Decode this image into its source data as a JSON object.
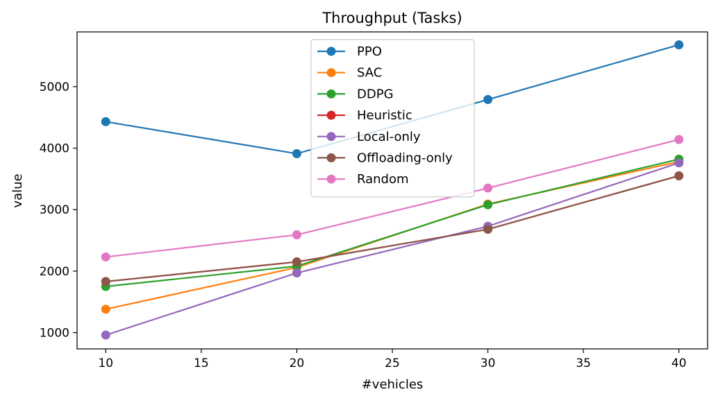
{
  "chart_data": {
    "type": "line",
    "title": "Throughput (Tasks)",
    "xlabel": "#vehicles",
    "ylabel": "value",
    "x": [
      10,
      20,
      30,
      40
    ],
    "xlim": [
      8.5,
      41.5
    ],
    "ylim": [
      735,
      5890
    ],
    "xticks": [
      10,
      15,
      20,
      25,
      30,
      35,
      40
    ],
    "yticks": [
      1000,
      2000,
      3000,
      4000,
      5000
    ],
    "grid": false,
    "legend_position": "upper center",
    "series": [
      {
        "name": "PPO",
        "color": "#1f77b4",
        "values": [
          4430,
          3910,
          4790,
          5680
        ]
      },
      {
        "name": "SAC",
        "color": "#ff7f0e",
        "values": [
          1380,
          2060,
          3090,
          3780
        ]
      },
      {
        "name": "DDPG",
        "color": "#2ca02c",
        "values": [
          1750,
          2080,
          3080,
          3820
        ]
      },
      {
        "name": "Heuristic",
        "color": "#d62728",
        "values": [
          1830,
          2150,
          2680,
          3550
        ]
      },
      {
        "name": "Local-only",
        "color": "#9467bd",
        "values": [
          960,
          1970,
          2730,
          3760
        ]
      },
      {
        "name": "Offloading-only",
        "color": "#8c564b",
        "values": [
          1830,
          2150,
          2680,
          3550
        ]
      },
      {
        "name": "Random",
        "color": "#e377c2",
        "values": [
          2230,
          2590,
          3350,
          4140
        ]
      }
    ]
  }
}
